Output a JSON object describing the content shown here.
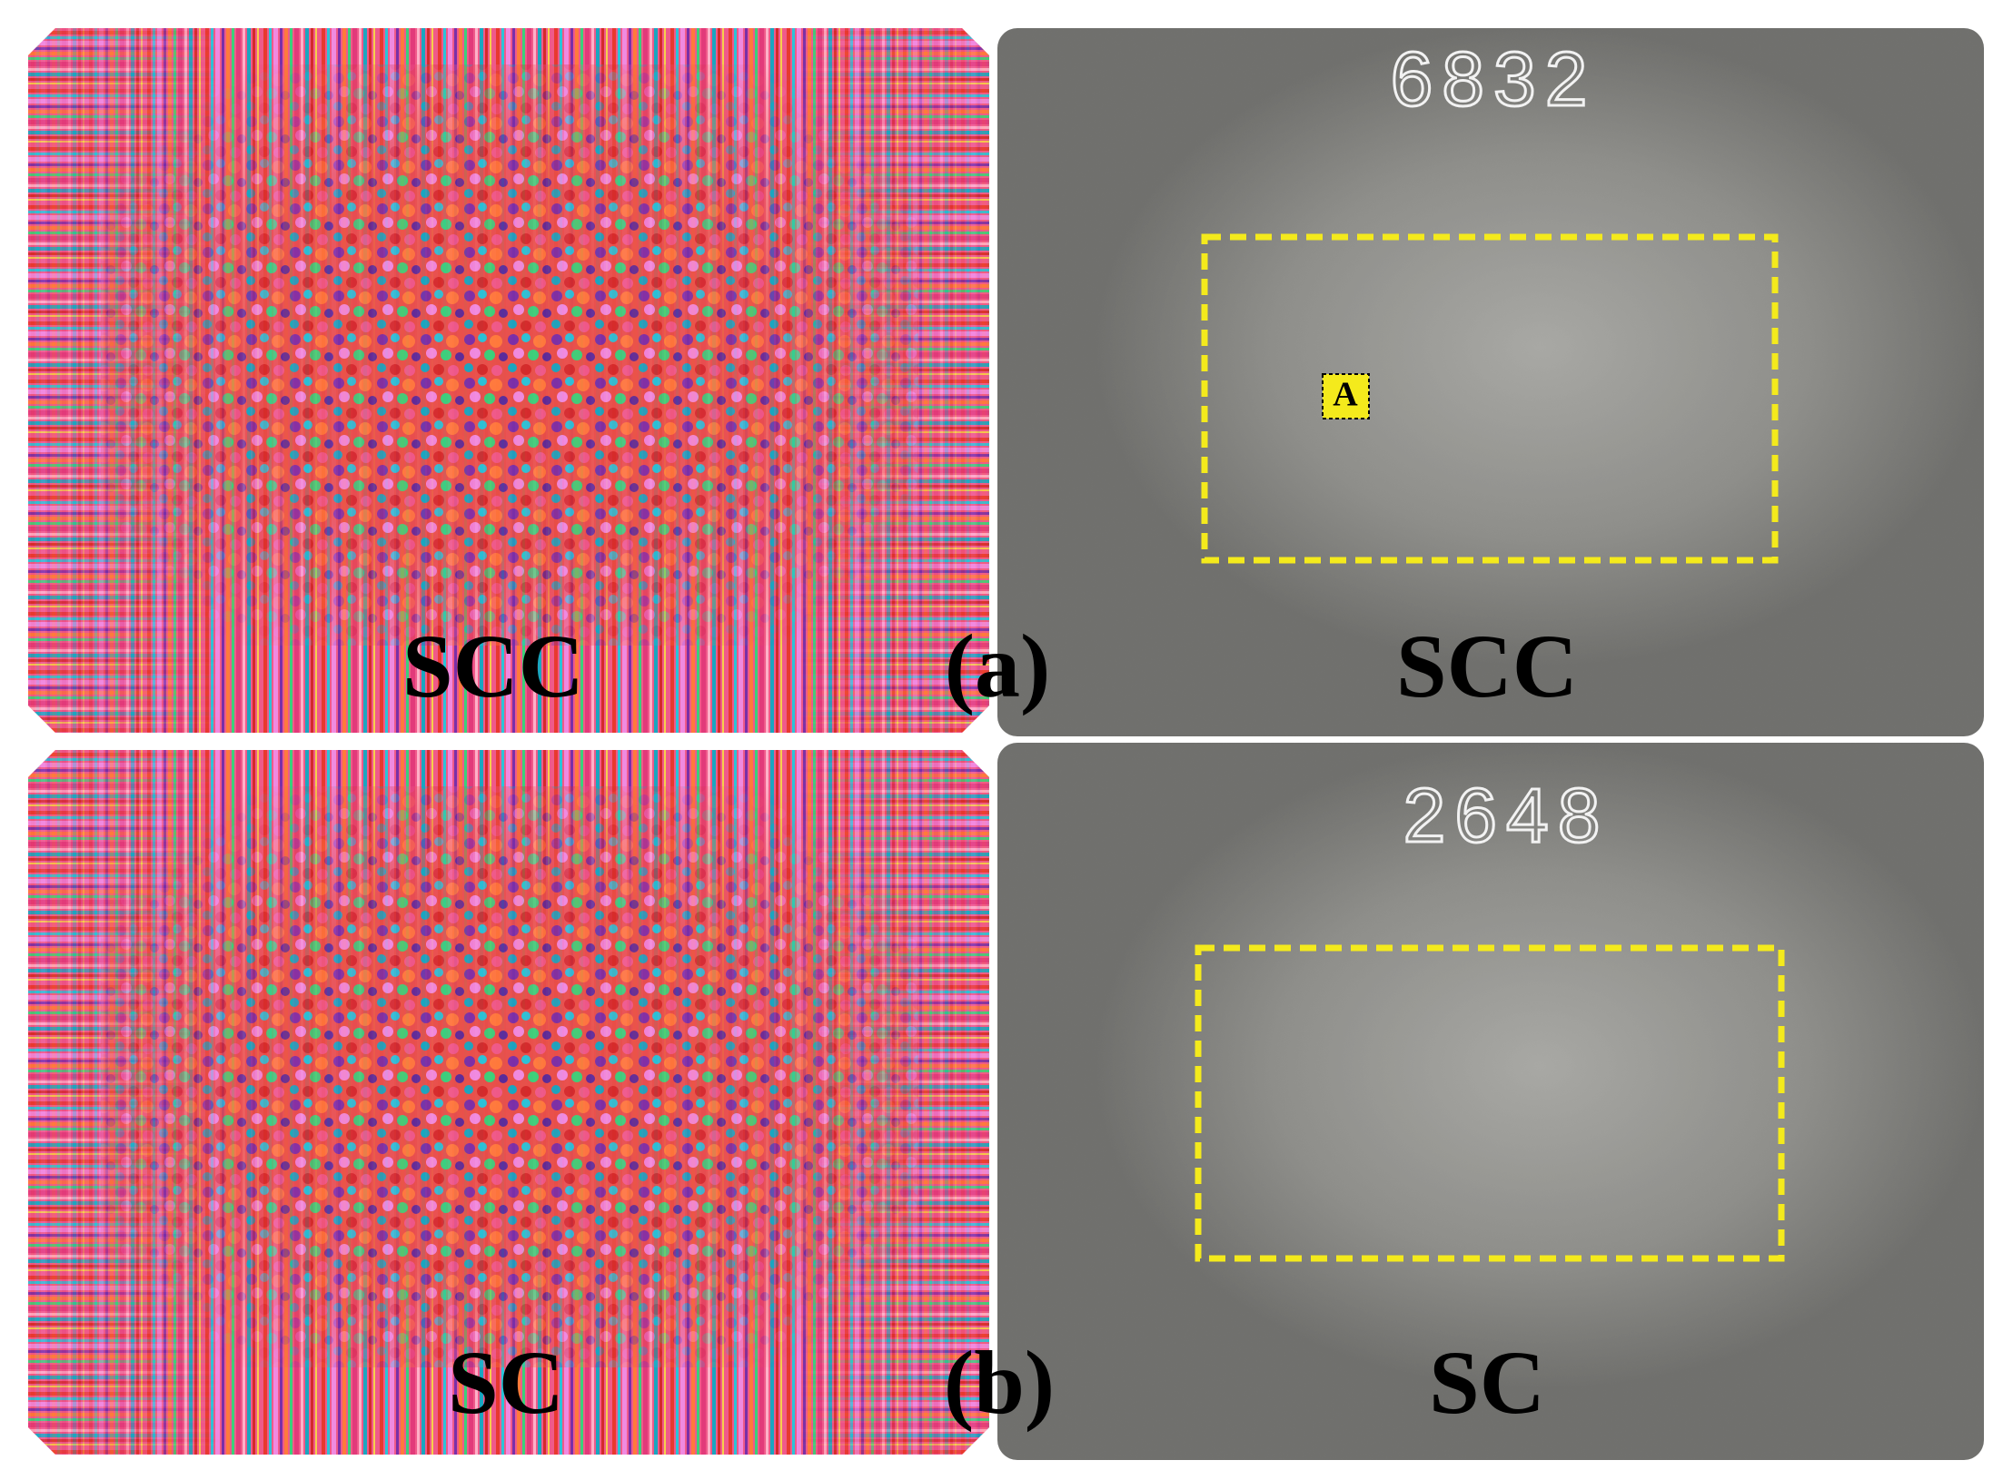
{
  "panels": [
    {
      "simulation_label": "SCC",
      "panel_label": "(a)",
      "photo_label": "SCC",
      "sample_number": "6832",
      "marker": "A"
    },
    {
      "simulation_label": "SC",
      "panel_label": "(b)",
      "photo_label": "SC",
      "sample_number": "2648"
    }
  ]
}
